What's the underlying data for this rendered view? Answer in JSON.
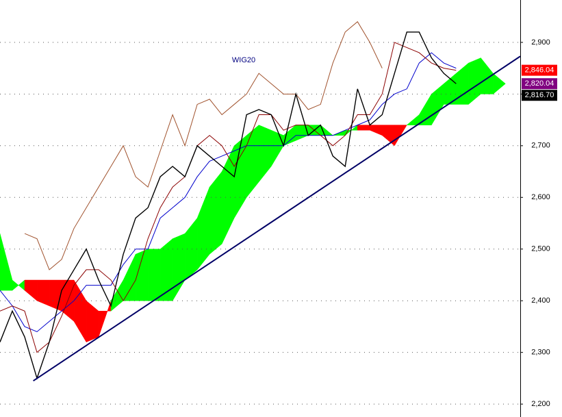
{
  "chart_data": {
    "type": "line",
    "title": "WIG20",
    "x": [
      0,
      1,
      2,
      3,
      4,
      5,
      6,
      7,
      8,
      9,
      10,
      11,
      12,
      13,
      14,
      15,
      16,
      17,
      18,
      19,
      20,
      21,
      22,
      23,
      24,
      25,
      26,
      27,
      28,
      29,
      30,
      31,
      32,
      33,
      34,
      35,
      36,
      37,
      38,
      39,
      40,
      41
    ],
    "xlim": [
      0,
      42.2
    ],
    "ylim": [
      2175,
      2982
    ],
    "yticks": [
      {
        "value": 2200,
        "label": "2,200"
      },
      {
        "value": 2300,
        "label": "2,300"
      },
      {
        "value": 2400,
        "label": "2,400"
      },
      {
        "value": 2500,
        "label": "2,500"
      },
      {
        "value": 2600,
        "label": "2,600"
      },
      {
        "value": 2700,
        "label": "2,700"
      },
      {
        "value": 2800,
        "label": "2,800"
      },
      {
        "value": 2900,
        "label": "2,900"
      }
    ],
    "grid": true,
    "cloud": {
      "up_color": "#00ff00",
      "down_color": "#ff0000",
      "span_a": [
        2530,
        2440,
        2420,
        2400,
        2390,
        2380,
        2360,
        2320,
        2330,
        2400,
        2440,
        2490,
        2500,
        2500,
        2520,
        2530,
        2560,
        2620,
        2650,
        2700,
        2720,
        2740,
        2730,
        2720,
        2740,
        2740,
        2740,
        2720,
        2730,
        2730,
        2730,
        2720,
        2700,
        2740,
        2760,
        2800,
        2820,
        2840,
        2860,
        2870,
        2840,
        2820
      ],
      "span_b": [
        2420,
        2420,
        2440,
        2440,
        2440,
        2440,
        2440,
        2400,
        2380,
        2380,
        2400,
        2400,
        2400,
        2400,
        2400,
        2440,
        2460,
        2490,
        2510,
        2560,
        2600,
        2630,
        2660,
        2700,
        2710,
        2720,
        2720,
        2720,
        2720,
        2740,
        2740,
        2740,
        2740,
        2740,
        2740,
        2740,
        2780,
        2780,
        2780,
        2800,
        2800,
        2820
      ]
    },
    "series": [
      {
        "color": "#a0522d",
        "values": [
          null,
          null,
          2530,
          2520,
          2460,
          2480,
          2540,
          2580,
          2620,
          2660,
          2700,
          2640,
          2620,
          2690,
          2760,
          2700,
          2780,
          2790,
          2760,
          2780,
          2800,
          2840,
          2820,
          2800,
          2800,
          2770,
          2780,
          2860,
          2920,
          2940,
          2900,
          2850,
          null,
          null,
          null,
          null,
          null,
          null,
          null,
          null,
          null,
          null
        ]
      },
      {
        "color": "#0000cc",
        "values": [
          2420,
          2390,
          2350,
          2340,
          2360,
          2380,
          2400,
          2430,
          2430,
          2430,
          2470,
          2500,
          2500,
          2560,
          2580,
          2600,
          2640,
          2670,
          2680,
          2690,
          2700,
          2700,
          2700,
          2700,
          2720,
          2720,
          2720,
          2720,
          2730,
          2740,
          2750,
          2780,
          2800,
          2810,
          2860,
          2880,
          2860,
          2850,
          null,
          null,
          null,
          null
        ]
      },
      {
        "color": "#8b0000",
        "values": [
          2380,
          2390,
          2380,
          2300,
          2320,
          2370,
          2430,
          2460,
          2460,
          2440,
          2400,
          2440,
          2520,
          2580,
          2620,
          2640,
          2700,
          2720,
          2700,
          2660,
          2700,
          2760,
          2760,
          2730,
          2740,
          2740,
          2720,
          2700,
          2720,
          2760,
          2760,
          2800,
          2900,
          2890,
          2880,
          2860,
          2850,
          2846,
          null,
          null,
          null,
          null
        ]
      },
      {
        "color": "#000000",
        "values": [
          2320,
          2380,
          2330,
          2250,
          2320,
          2420,
          2460,
          2500,
          2440,
          2390,
          2490,
          2560,
          2580,
          2640,
          2660,
          2640,
          2700,
          2680,
          2660,
          2640,
          2760,
          2770,
          2760,
          2700,
          2800,
          2720,
          2740,
          2680,
          2660,
          2810,
          2740,
          2760,
          2840,
          2920,
          2920,
          2870,
          2840,
          2820,
          null,
          null,
          null,
          null
        ]
      }
    ],
    "trendline": {
      "color": "#000066",
      "x": [
        2.7,
        42.2
      ],
      "values": [
        2245,
        2873
      ]
    },
    "price_labels": [
      {
        "value": 2846.04,
        "label": "2,846.04",
        "color": "#ff0000"
      },
      {
        "value": 2820.04,
        "label": "2,820.04",
        "color": "#800080"
      },
      {
        "value": 2816.7,
        "label": "2,816.70",
        "color": "#000000"
      }
    ]
  }
}
